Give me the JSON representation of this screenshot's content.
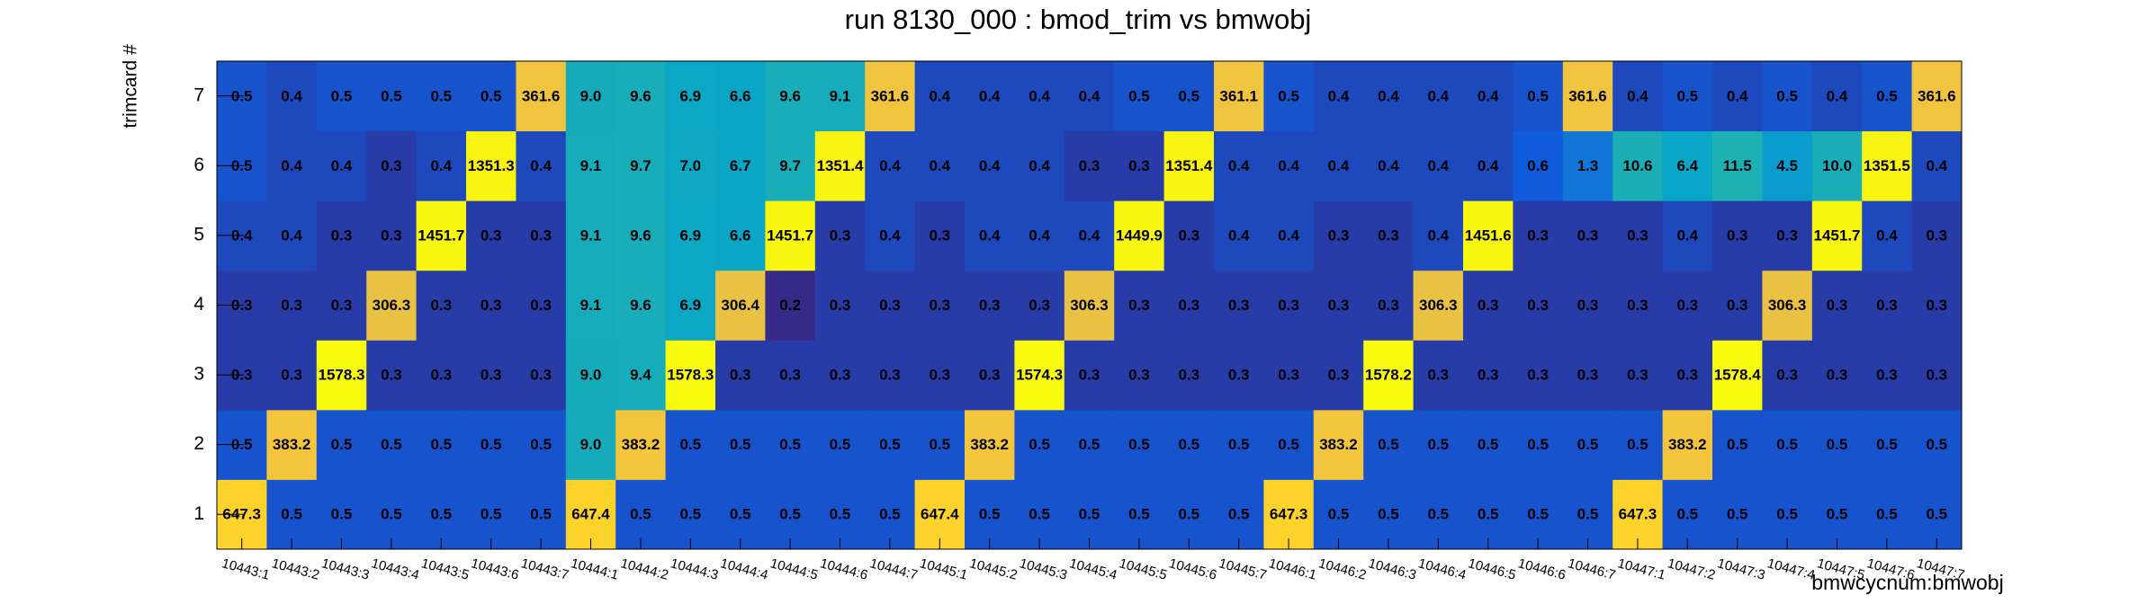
{
  "chart_data": {
    "type": "heatmap",
    "title": "run 8130_000 : bmod_trim vs bmwobj",
    "x_label": "bmwcycnum:bmwobj",
    "y_label": "trimcard #",
    "log_z": true,
    "x_categories": [
      "10443:1",
      "10443:2",
      "10443:3",
      "10443:4",
      "10443:5",
      "10443:6",
      "10443:7",
      "10444:1",
      "10444:2",
      "10444:3",
      "10444:4",
      "10444:5",
      "10444:6",
      "10444:7",
      "10445:1",
      "10445:2",
      "10445:3",
      "10445:4",
      "10445:5",
      "10445:6",
      "10445:7",
      "10446:1",
      "10446:2",
      "10446:3",
      "10446:4",
      "10446:5",
      "10446:6",
      "10446:7",
      "10447:1",
      "10447:2",
      "10447:3",
      "10447:4",
      "10447:5",
      "10447:6",
      "10447:7"
    ],
    "y_categories": [
      1,
      2,
      3,
      4,
      5,
      6,
      7
    ],
    "z": [
      [
        647.3,
        0.5,
        0.5,
        0.5,
        0.5,
        0.5,
        0.5,
        647.4,
        0.5,
        0.5,
        0.5,
        0.5,
        0.5,
        0.5,
        647.4,
        0.5,
        0.5,
        0.5,
        0.5,
        0.5,
        0.5,
        647.3,
        0.5,
        0.5,
        0.5,
        0.5,
        0.5,
        0.5,
        647.3,
        0.5,
        0.5,
        0.5,
        0.5,
        0.5,
        0.5
      ],
      [
        0.5,
        383.2,
        0.5,
        0.5,
        0.5,
        0.5,
        0.5,
        9.0,
        383.2,
        0.5,
        0.5,
        0.5,
        0.5,
        0.5,
        0.5,
        383.2,
        0.5,
        0.5,
        0.5,
        0.5,
        0.5,
        0.5,
        383.2,
        0.5,
        0.5,
        0.5,
        0.5,
        0.5,
        0.5,
        383.2,
        0.5,
        0.5,
        0.5,
        0.5,
        0.5
      ],
      [
        0.3,
        0.3,
        1578.3,
        0.3,
        0.3,
        0.3,
        0.3,
        9.0,
        9.4,
        1578.3,
        0.3,
        0.3,
        0.3,
        0.3,
        0.3,
        0.3,
        1574.3,
        0.3,
        0.3,
        0.3,
        0.3,
        0.3,
        0.3,
        1578.2,
        0.3,
        0.3,
        0.3,
        0.3,
        0.3,
        0.3,
        1578.4,
        0.3,
        0.3,
        0.3,
        0.3
      ],
      [
        0.3,
        0.3,
        0.3,
        306.3,
        0.3,
        0.3,
        0.3,
        9.1,
        9.6,
        6.9,
        306.4,
        0.2,
        0.3,
        0.3,
        0.3,
        0.3,
        0.3,
        306.3,
        0.3,
        0.3,
        0.3,
        0.3,
        0.3,
        0.3,
        306.3,
        0.3,
        0.3,
        0.3,
        0.3,
        0.3,
        0.3,
        306.3,
        0.3,
        0.3,
        0.3
      ],
      [
        0.4,
        0.4,
        0.3,
        0.3,
        1451.7,
        0.3,
        0.3,
        9.1,
        9.6,
        6.9,
        6.6,
        1451.7,
        0.3,
        0.4,
        0.3,
        0.4,
        0.4,
        0.4,
        1449.9,
        0.3,
        0.4,
        0.4,
        0.3,
        0.3,
        0.4,
        1451.6,
        0.3,
        0.3,
        0.3,
        0.4,
        0.3,
        0.3,
        1451.7,
        0.4,
        0.3
      ],
      [
        0.5,
        0.4,
        0.4,
        0.3,
        0.4,
        1351.3,
        0.4,
        9.1,
        9.7,
        7.0,
        6.7,
        9.7,
        1351.4,
        0.4,
        0.4,
        0.4,
        0.4,
        0.3,
        0.3,
        1351.4,
        0.4,
        0.4,
        0.4,
        0.4,
        0.4,
        0.4,
        0.6,
        1.3,
        10.6,
        6.4,
        11.5,
        4.5,
        10.0,
        1351.5,
        0.4
      ],
      [
        0.5,
        0.4,
        0.5,
        0.5,
        0.5,
        0.5,
        361.6,
        9.0,
        9.6,
        6.9,
        6.6,
        9.6,
        9.1,
        361.6,
        0.4,
        0.4,
        0.4,
        0.4,
        0.5,
        0.5,
        361.1,
        0.5,
        0.4,
        0.4,
        0.4,
        0.4,
        0.5,
        361.6,
        0.4,
        0.5,
        0.4,
        0.5,
        0.4,
        0.5,
        361.6
      ]
    ],
    "value_labels": [
      [
        "647.3",
        "0.5",
        "0.5",
        "0.5",
        "0.5",
        "0.5",
        "0.5",
        "647.4",
        "0.5",
        "0.5",
        "0.5",
        "0.5",
        "0.5",
        "0.5",
        "647.4",
        "0.5",
        "0.5",
        "0.5",
        "0.5",
        "0.5",
        "0.5",
        "647.3",
        "0.5",
        "0.5",
        "0.5",
        "0.5",
        "0.5",
        "0.5",
        "647.3",
        "0.5",
        "0.5",
        "0.5",
        "0.5",
        "0.5",
        "0.5"
      ],
      [
        "0.5",
        "383.2",
        "0.5",
        "0.5",
        "0.5",
        "0.5",
        "0.5",
        "9.0",
        "383.2",
        "0.5",
        "0.5",
        "0.5",
        "0.5",
        "0.5",
        "0.5",
        "383.2",
        "0.5",
        "0.5",
        "0.5",
        "0.5",
        "0.5",
        "0.5",
        "383.2",
        "0.5",
        "0.5",
        "0.5",
        "0.5",
        "0.5",
        "0.5",
        "383.2",
        "0.5",
        "0.5",
        "0.5",
        "0.5",
        "0.5"
      ],
      [
        "0.3",
        "0.3",
        "1578.3",
        "0.3",
        "0.3",
        "0.3",
        "0.3",
        "9.0",
        "9.4",
        "1578.3",
        "0.3",
        "0.3",
        "0.3",
        "0.3",
        "0.3",
        "0.3",
        "1574.3",
        "0.3",
        "0.3",
        "0.3",
        "0.3",
        "0.3",
        "0.3",
        "1578.2",
        "0.3",
        "0.3",
        "0.3",
        "0.3",
        "0.3",
        "0.3",
        "1578.4",
        "0.3",
        "0.3",
        "0.3",
        "0.3"
      ],
      [
        "0.3",
        "0.3",
        "0.3",
        "306.3",
        "0.3",
        "0.3",
        "0.3",
        "9.1",
        "9.6",
        "6.9",
        "306.4",
        "0.2",
        "0.3",
        "0.3",
        "0.3",
        "0.3",
        "0.3",
        "306.3",
        "0.3",
        "0.3",
        "0.3",
        "0.3",
        "0.3",
        "0.3",
        "306.3",
        "0.3",
        "0.3",
        "0.3",
        "0.3",
        "0.3",
        "0.3",
        "306.3",
        "0.3",
        "0.3",
        "0.3"
      ],
      [
        "0.4",
        "0.4",
        "0.3",
        "0.3",
        "1451.7",
        "0.3",
        "0.3",
        "9.1",
        "9.6",
        "6.9",
        "6.6",
        "1451.7",
        "0.3",
        "0.4",
        "0.3",
        "0.4",
        "0.4",
        "0.4",
        "1449.9",
        "0.3",
        "0.4",
        "0.4",
        "0.3",
        "0.3",
        "0.4",
        "1451.6",
        "0.3",
        "0.3",
        "0.3",
        "0.4",
        "0.3",
        "0.3",
        "1451.7",
        "0.4",
        "0.3"
      ],
      [
        "0.5",
        "0.4",
        "0.4",
        "0.3",
        "0.4",
        "1351.3",
        "0.4",
        "9.1",
        "9.7",
        "7.0",
        "6.7",
        "9.7",
        "1351.4",
        "0.4",
        "0.4",
        "0.4",
        "0.4",
        "0.3",
        "0.3",
        "1351.4",
        "0.4",
        "0.4",
        "0.4",
        "0.4",
        "0.4",
        "0.4",
        "0.6",
        "1.3",
        "10.6",
        "6.4",
        "11.5",
        "4.5",
        "10.0",
        "1351.5",
        "0.4"
      ],
      [
        "0.5",
        "0.4",
        "0.5",
        "0.5",
        "0.5",
        "0.5",
        "361.6",
        "9.0",
        "9.6",
        "6.9",
        "6.6",
        "9.6",
        "9.1",
        "361.6",
        "0.4",
        "0.4",
        "0.4",
        "0.4",
        "0.5",
        "0.5",
        "361.1",
        "0.5",
        "0.4",
        "0.4",
        "0.4",
        "0.4",
        "0.5",
        "361.6",
        "0.4",
        "0.5",
        "0.4",
        "0.5",
        "0.4",
        "0.5",
        "361.6"
      ]
    ]
  }
}
